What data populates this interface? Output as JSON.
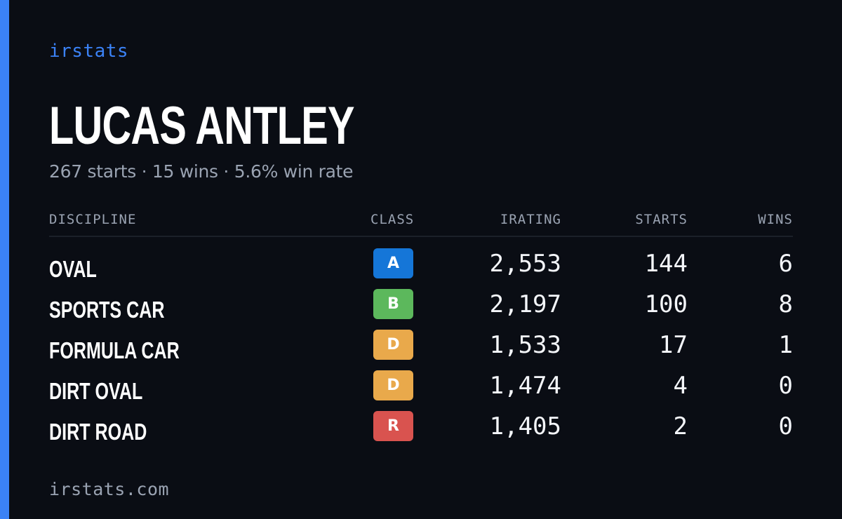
{
  "brand": "irstats",
  "driver": {
    "name": "LUCAS ANTLEY",
    "summary": "267 starts · 15 wins · 5.6% win rate"
  },
  "table": {
    "headers": {
      "discipline": "DISCIPLINE",
      "class": "CLASS",
      "irating": "IRATING",
      "starts": "STARTS",
      "wins": "WINS"
    },
    "rows": [
      {
        "discipline": "OVAL",
        "class": "A",
        "class_color": "#1576d8",
        "irating": "2,553",
        "starts": "144",
        "wins": "6"
      },
      {
        "discipline": "SPORTS CAR",
        "class": "B",
        "class_color": "#5cb85c",
        "irating": "2,197",
        "starts": "100",
        "wins": "8"
      },
      {
        "discipline": "FORMULA CAR",
        "class": "D",
        "class_color": "#e9a94b",
        "irating": "1,533",
        "starts": "17",
        "wins": "1"
      },
      {
        "discipline": "DIRT OVAL",
        "class": "D",
        "class_color": "#e9a94b",
        "irating": "1,474",
        "starts": "4",
        "wins": "0"
      },
      {
        "discipline": "DIRT ROAD",
        "class": "R",
        "class_color": "#d9534f",
        "irating": "1,405",
        "starts": "2",
        "wins": "0"
      }
    ]
  },
  "footer": "irstats.com",
  "colors": {
    "accent": "#3b82f6",
    "background": "#0a0d14",
    "muted_text": "#9aa3b2"
  }
}
